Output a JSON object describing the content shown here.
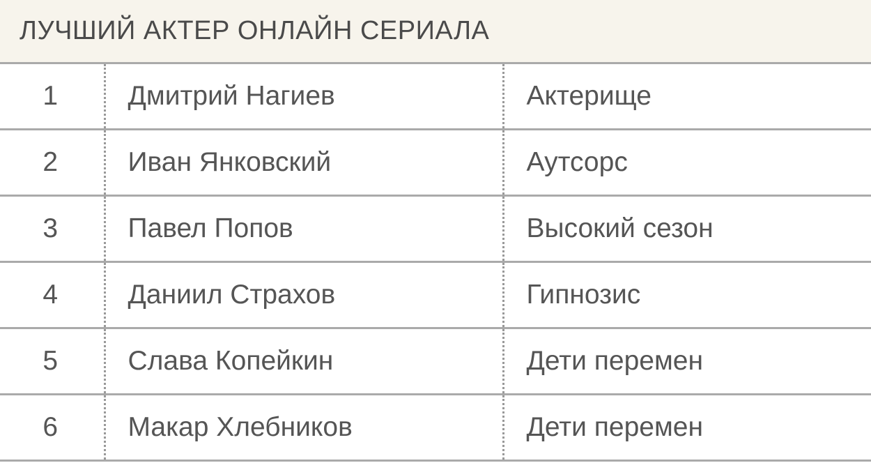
{
  "title": "ЛУЧШИЙ АКТЕР ОНЛАЙН СЕРИАЛА",
  "rows": [
    {
      "rank": "1",
      "actor": "Дмитрий Нагиев",
      "series": "Актерище"
    },
    {
      "rank": "2",
      "actor": "Иван Янковский",
      "series": "Аутсорс"
    },
    {
      "rank": "3",
      "actor": "Павел Попов",
      "series": "Высокий сезон"
    },
    {
      "rank": "4",
      "actor": "Даниил Страхов",
      "series": "Гипнозис"
    },
    {
      "rank": "5",
      "actor": "Слава Копейкин",
      "series": "Дети перемен"
    },
    {
      "rank": "6",
      "actor": "Макар Хлебников",
      "series": "Дети перемен"
    }
  ]
}
